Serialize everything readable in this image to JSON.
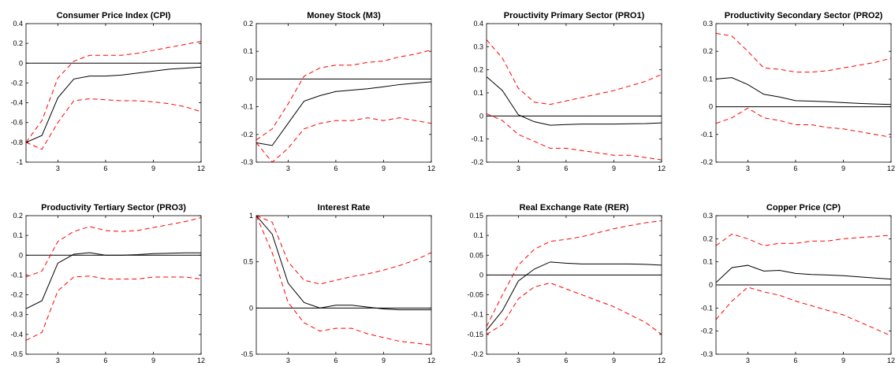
{
  "colors": {
    "response": "#000000",
    "bands": "#ff0000",
    "zero_line": "#000000",
    "axes": "#000000"
  },
  "chart_data": [
    {
      "type": "line",
      "title": "Consumer Price Index (CPI)",
      "x": [
        1,
        2,
        3,
        4,
        5,
        6,
        7,
        8,
        9,
        10,
        11,
        12
      ],
      "ylim": [
        -1,
        0.4
      ],
      "yticks": [
        "-1",
        "-0.8",
        "-0.6",
        "-0.4",
        "-0.2",
        "0",
        "0.2",
        "0.4"
      ],
      "ytick_values": [
        -1,
        -0.8,
        -0.6,
        -0.4,
        -0.2,
        0,
        0.2,
        0.4
      ],
      "xticks": [
        3,
        6,
        9,
        12
      ],
      "series": [
        {
          "role": "response",
          "values": [
            -0.8,
            -0.73,
            -0.35,
            -0.16,
            -0.13,
            -0.13,
            -0.12,
            -0.1,
            -0.08,
            -0.06,
            -0.05,
            -0.04
          ]
        },
        {
          "role": "upper",
          "values": [
            -0.8,
            -0.58,
            -0.15,
            0.02,
            0.08,
            0.08,
            0.08,
            0.1,
            0.13,
            0.16,
            0.19,
            0.22
          ]
        },
        {
          "role": "lower",
          "values": [
            -0.8,
            -0.87,
            -0.6,
            -0.38,
            -0.36,
            -0.37,
            -0.38,
            -0.38,
            -0.39,
            -0.41,
            -0.44,
            -0.49
          ]
        }
      ]
    },
    {
      "type": "line",
      "title": "Money Stock (M3)",
      "x": [
        1,
        2,
        3,
        4,
        5,
        6,
        7,
        8,
        9,
        10,
        11,
        12
      ],
      "ylim": [
        -0.3,
        0.2
      ],
      "yticks": [
        "-0.3",
        "-0.2",
        "-0.1",
        "0",
        "0.1",
        "0.2"
      ],
      "ytick_values": [
        -0.3,
        -0.2,
        -0.1,
        0,
        0.1,
        0.2
      ],
      "xticks": [
        3,
        6,
        9,
        12
      ],
      "series": [
        {
          "role": "response",
          "values": [
            -0.23,
            -0.24,
            -0.16,
            -0.08,
            -0.06,
            -0.045,
            -0.04,
            -0.035,
            -0.028,
            -0.02,
            -0.015,
            -0.01
          ]
        },
        {
          "role": "upper",
          "values": [
            -0.22,
            -0.18,
            -0.09,
            0.01,
            0.04,
            0.05,
            0.05,
            0.06,
            0.065,
            0.08,
            0.09,
            0.105
          ]
        },
        {
          "role": "lower",
          "values": [
            -0.23,
            -0.3,
            -0.25,
            -0.18,
            -0.16,
            -0.15,
            -0.15,
            -0.14,
            -0.15,
            -0.14,
            -0.15,
            -0.16
          ]
        }
      ]
    },
    {
      "type": "line",
      "title": "Prouctivity Primary Sector (PRO1)",
      "x": [
        1,
        2,
        3,
        4,
        5,
        6,
        7,
        8,
        9,
        10,
        11,
        12
      ],
      "ylim": [
        -0.2,
        0.4
      ],
      "yticks": [
        "-0.2",
        "-0.1",
        "0",
        "0.1",
        "0.2",
        "0.3",
        "0.4"
      ],
      "ytick_values": [
        -0.2,
        -0.1,
        0,
        0.1,
        0.2,
        0.3,
        0.4
      ],
      "xticks": [
        3,
        6,
        9,
        12
      ],
      "series": [
        {
          "role": "response",
          "values": [
            0.17,
            0.11,
            0.005,
            -0.025,
            -0.04,
            -0.037,
            -0.035,
            -0.035,
            -0.035,
            -0.034,
            -0.033,
            -0.03
          ]
        },
        {
          "role": "upper",
          "values": [
            0.33,
            0.25,
            0.12,
            0.06,
            0.05,
            0.065,
            0.08,
            0.095,
            0.11,
            0.13,
            0.15,
            0.18
          ]
        },
        {
          "role": "lower",
          "values": [
            0.01,
            -0.02,
            -0.08,
            -0.11,
            -0.14,
            -0.14,
            -0.15,
            -0.16,
            -0.17,
            -0.17,
            -0.18,
            -0.19
          ]
        }
      ]
    },
    {
      "type": "line",
      "title": "Productivity Secondary Sector (PRO2)",
      "x": [
        1,
        2,
        3,
        4,
        5,
        6,
        7,
        8,
        9,
        10,
        11,
        12
      ],
      "ylim": [
        -0.2,
        0.3
      ],
      "yticks": [
        "-0.2",
        "-0.1",
        "0",
        "0.1",
        "0.2",
        "0.3"
      ],
      "ytick_values": [
        -0.2,
        -0.1,
        0,
        0.1,
        0.2,
        0.3
      ],
      "xticks": [
        3,
        6,
        9,
        12
      ],
      "series": [
        {
          "role": "response",
          "values": [
            0.1,
            0.105,
            0.08,
            0.045,
            0.035,
            0.022,
            0.02,
            0.018,
            0.015,
            0.012,
            0.01,
            0.008
          ]
        },
        {
          "role": "upper",
          "values": [
            0.265,
            0.255,
            0.2,
            0.14,
            0.135,
            0.125,
            0.125,
            0.13,
            0.14,
            0.15,
            0.16,
            0.175
          ]
        },
        {
          "role": "lower",
          "values": [
            -0.06,
            -0.04,
            -0.005,
            -0.04,
            -0.05,
            -0.065,
            -0.065,
            -0.075,
            -0.08,
            -0.09,
            -0.1,
            -0.11
          ]
        }
      ]
    },
    {
      "type": "line",
      "title": "Productivity Tertiary Sector (PRO3)",
      "x": [
        1,
        2,
        3,
        4,
        5,
        6,
        7,
        8,
        9,
        10,
        11,
        12
      ],
      "ylim": [
        -0.5,
        0.2
      ],
      "yticks": [
        "-0.5",
        "-0.4",
        "-0.3",
        "-0.2",
        "-0.1",
        "0",
        "0.1",
        "0.2"
      ],
      "ytick_values": [
        -0.5,
        -0.4,
        -0.3,
        -0.2,
        -0.1,
        0,
        0.1,
        0.2
      ],
      "xticks": [
        3,
        6,
        9,
        12
      ],
      "series": [
        {
          "role": "response",
          "values": [
            -0.27,
            -0.23,
            -0.04,
            0.005,
            0.013,
            0.0,
            0.0,
            0.003,
            0.008,
            0.01,
            0.012,
            0.012
          ]
        },
        {
          "role": "upper",
          "values": [
            -0.11,
            -0.08,
            0.07,
            0.12,
            0.145,
            0.125,
            0.12,
            0.125,
            0.14,
            0.155,
            0.17,
            0.19
          ]
        },
        {
          "role": "lower",
          "values": [
            -0.43,
            -0.39,
            -0.18,
            -0.11,
            -0.105,
            -0.12,
            -0.12,
            -0.12,
            -0.11,
            -0.11,
            -0.11,
            -0.12
          ]
        }
      ]
    },
    {
      "type": "line",
      "title": "Interest Rate",
      "x": [
        1,
        2,
        3,
        4,
        5,
        6,
        7,
        8,
        9,
        10,
        11,
        12
      ],
      "ylim": [
        -0.5,
        1
      ],
      "yticks": [
        "-0.5",
        "0",
        "0.5",
        "1"
      ],
      "ytick_values": [
        -0.5,
        0,
        0.5,
        1
      ],
      "xticks": [
        3,
        6,
        9,
        12
      ],
      "series": [
        {
          "role": "response",
          "values": [
            1,
            0.8,
            0.27,
            0.06,
            0.0,
            0.03,
            0.03,
            0.01,
            -0.01,
            -0.02,
            -0.02,
            -0.02
          ]
        },
        {
          "role": "upper",
          "values": [
            1,
            0.93,
            0.5,
            0.3,
            0.26,
            0.3,
            0.34,
            0.37,
            0.41,
            0.46,
            0.52,
            0.6
          ]
        },
        {
          "role": "lower",
          "values": [
            1,
            0.6,
            0.06,
            -0.16,
            -0.25,
            -0.22,
            -0.22,
            -0.28,
            -0.32,
            -0.36,
            -0.38,
            -0.4
          ]
        }
      ]
    },
    {
      "type": "line",
      "title": "Real Exchange Rate (RER)",
      "x": [
        1,
        2,
        3,
        4,
        5,
        6,
        7,
        8,
        9,
        10,
        11,
        12
      ],
      "ylim": [
        -0.2,
        0.15
      ],
      "yticks": [
        "-0.2",
        "-0.15",
        "-0.1",
        "-0.05",
        "0",
        "0.05",
        "0.1",
        "0.15"
      ],
      "ytick_values": [
        -0.2,
        -0.15,
        -0.1,
        -0.05,
        0,
        0.05,
        0.1,
        0.15
      ],
      "xticks": [
        3,
        6,
        9,
        12
      ],
      "series": [
        {
          "role": "response",
          "values": [
            -0.14,
            -0.09,
            -0.015,
            0.015,
            0.033,
            0.03,
            0.028,
            0.028,
            0.028,
            0.028,
            0.027,
            0.025
          ]
        },
        {
          "role": "upper",
          "values": [
            -0.13,
            -0.05,
            0.025,
            0.065,
            0.085,
            0.09,
            0.097,
            0.107,
            0.117,
            0.125,
            0.132,
            0.137
          ]
        },
        {
          "role": "lower",
          "values": [
            -0.15,
            -0.125,
            -0.06,
            -0.03,
            -0.02,
            -0.035,
            -0.05,
            -0.065,
            -0.08,
            -0.1,
            -0.12,
            -0.15
          ]
        }
      ]
    },
    {
      "type": "line",
      "title": "Copper Price (CP)",
      "x": [
        1,
        2,
        3,
        4,
        5,
        6,
        7,
        8,
        9,
        10,
        11,
        12
      ],
      "ylim": [
        -0.3,
        0.3
      ],
      "yticks": [
        "-0.3",
        "-0.2",
        "-0.1",
        "0",
        "0.1",
        "0.2",
        "0.3"
      ],
      "ytick_values": [
        -0.3,
        -0.2,
        -0.1,
        0,
        0.1,
        0.2,
        0.3
      ],
      "xticks": [
        3,
        6,
        9,
        12
      ],
      "series": [
        {
          "role": "response",
          "values": [
            0.01,
            0.075,
            0.085,
            0.06,
            0.063,
            0.05,
            0.045,
            0.043,
            0.04,
            0.035,
            0.03,
            0.025
          ]
        },
        {
          "role": "upper",
          "values": [
            0.17,
            0.22,
            0.2,
            0.17,
            0.18,
            0.18,
            0.19,
            0.19,
            0.2,
            0.205,
            0.21,
            0.215
          ]
        },
        {
          "role": "lower",
          "values": [
            -0.15,
            -0.07,
            -0.01,
            -0.03,
            -0.045,
            -0.07,
            -0.09,
            -0.11,
            -0.13,
            -0.16,
            -0.19,
            -0.22
          ]
        }
      ]
    }
  ]
}
